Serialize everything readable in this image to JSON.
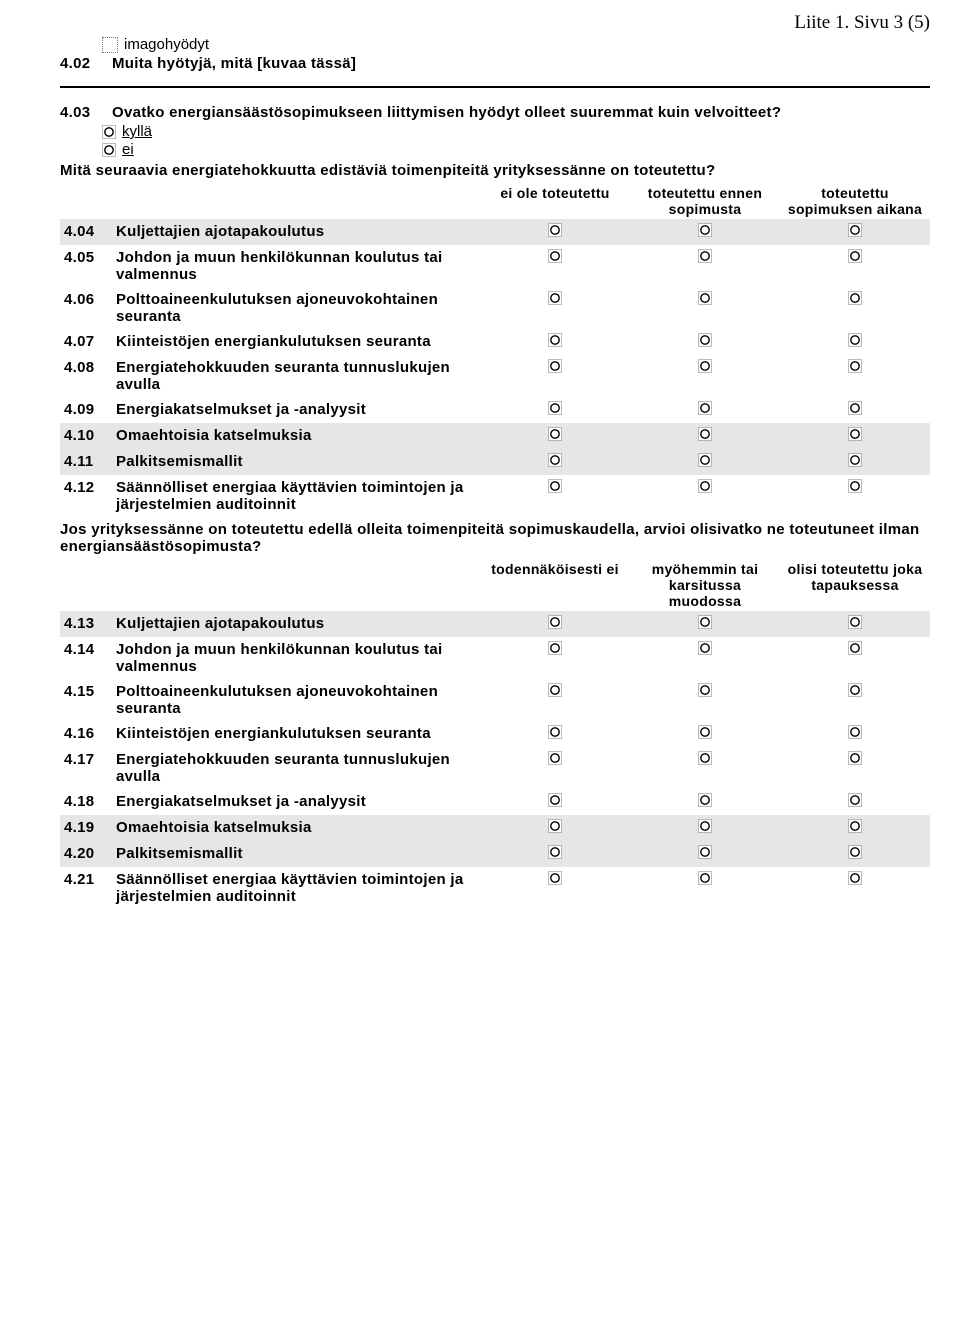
{
  "page_header": "Liite 1. Sivu 3 (5)",
  "top": {
    "checkbox_label": "imagohyödyt",
    "q402_num": "4.02",
    "q402_text": "Muita hyötyjä, mitä [kuvaa tässä]"
  },
  "q403": {
    "num": "4.03",
    "text": "Ovatko energiansäästösopimukseen liittymisen hyödyt olleet suuremmat kuin velvoitteet?",
    "opt1": "kyllä",
    "opt2": "ei"
  },
  "matrix1": {
    "intro": "Mitä seuraavia energiatehokkuutta edistäviä toimenpiteitä yrityksessänne on toteutettu?",
    "col1": "ei ole toteutettu",
    "col2": "toteutettu ennen sopimusta",
    "col3": "toteutettu sopimuksen aikana",
    "rows": [
      {
        "num": "4.04",
        "label": "Kuljettajien ajotapakoulutus",
        "shaded": true
      },
      {
        "num": "4.05",
        "label": "Johdon ja muun henkilökunnan koulutus tai valmennus",
        "shaded": false
      },
      {
        "num": "4.06",
        "label": "Polttoaineenkulutuksen ajoneuvokohtainen seuranta",
        "shaded": false
      },
      {
        "num": "4.07",
        "label": "Kiinteistöjen energiankulutuksen seuranta",
        "shaded": false
      },
      {
        "num": "4.08",
        "label": "Energiatehokkuuden seuranta tunnuslukujen avulla",
        "shaded": false
      },
      {
        "num": "4.09",
        "label": "Energiakatselmukset ja -analyysit",
        "shaded": false
      },
      {
        "num": "4.10",
        "label": "Omaehtoisia katselmuksia",
        "shaded": true
      },
      {
        "num": "4.11",
        "label": "Palkitsemismallit",
        "shaded": true
      },
      {
        "num": "4.12",
        "label": "Säännölliset energiaa käyttävien toimintojen ja järjestelmien auditoinnit",
        "shaded": false
      }
    ]
  },
  "matrix2": {
    "intro": "Jos yrityksessänne on toteutettu edellä olleita toimenpiteitä sopimuskaudella, arvioi olisivatko ne toteutuneet ilman energiansäästösopimusta?",
    "col1": "todennäköisesti ei",
    "col2": "myöhemmin tai karsitussa muodossa",
    "col3": "olisi toteutettu joka tapauksessa",
    "rows": [
      {
        "num": "4.13",
        "label": "Kuljettajien ajotapakoulutus",
        "shaded": true
      },
      {
        "num": "4.14",
        "label": "Johdon ja muun henkilökunnan koulutus tai valmennus",
        "shaded": false
      },
      {
        "num": "4.15",
        "label": "Polttoaineenkulutuksen ajoneuvokohtainen seuranta",
        "shaded": false
      },
      {
        "num": "4.16",
        "label": "Kiinteistöjen energiankulutuksen seuranta",
        "shaded": false
      },
      {
        "num": "4.17",
        "label": "Energiatehokkuuden seuranta tunnuslukujen avulla",
        "shaded": false
      },
      {
        "num": "4.18",
        "label": "Energiakatselmukset ja -analyysit",
        "shaded": false
      },
      {
        "num": "4.19",
        "label": "Omaehtoisia katselmuksia",
        "shaded": true
      },
      {
        "num": "4.20",
        "label": "Palkitsemismallit",
        "shaded": true
      },
      {
        "num": "4.21",
        "label": "Säännölliset energiaa käyttävien toimintojen ja järjestelmien auditoinnit",
        "shaded": false
      }
    ]
  }
}
